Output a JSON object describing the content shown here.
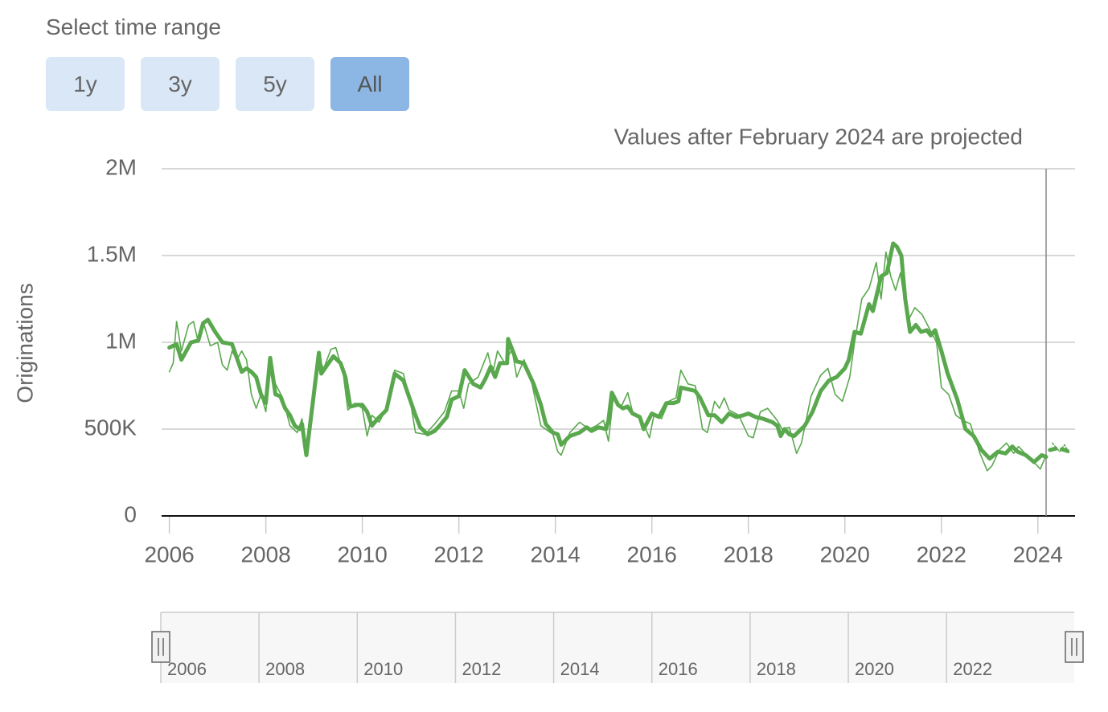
{
  "controls": {
    "label": "Select time range",
    "buttons": [
      "1y",
      "3y",
      "5y",
      "All"
    ],
    "selected": 3
  },
  "chart_data": {
    "type": "line",
    "annotation": "Values after February 2024 are projected",
    "ylabel": "Originations",
    "xlim": [
      2005.84,
      2024.77
    ],
    "xticks": [
      2006,
      2008,
      2010,
      2012,
      2014,
      2016,
      2018,
      2020,
      2022,
      2024
    ],
    "ylim": [
      0,
      2000000
    ],
    "yticks": [
      0,
      {
        "value": 500000,
        "label": "500K"
      },
      {
        "value": 1000000,
        "label": "1M"
      },
      {
        "value": 1500000,
        "label": "1.5M"
      },
      {
        "value": 2000000,
        "label": "2M"
      }
    ],
    "grid": true,
    "plot_line": 2024.17,
    "series": [
      {
        "color": "#5aa84e",
        "line_width": 1.6,
        "dashed": false,
        "x": [
          2006.0,
          2006.08,
          2006.15,
          2006.25,
          2006.4,
          2006.5,
          2006.6,
          2006.7,
          2006.85,
          2007.0,
          2007.1,
          2007.2,
          2007.3,
          2007.4,
          2007.5,
          2007.6,
          2007.7,
          2007.8,
          2007.9,
          2008.0,
          2008.09,
          2008.2,
          2008.35,
          2008.5,
          2008.65,
          2008.75,
          2008.84,
          2009.0,
          2009.1,
          2009.2,
          2009.35,
          2009.45,
          2009.6,
          2009.7,
          2009.85,
          2010.0,
          2010.1,
          2010.2,
          2010.35,
          2010.5,
          2010.67,
          2010.85,
          2011.0,
          2011.1,
          2011.3,
          2011.5,
          2011.7,
          2011.85,
          2012.0,
          2012.1,
          2012.2,
          2012.4,
          2012.6,
          2012.7,
          2012.8,
          2012.95,
          2013.1,
          2013.2,
          2013.35,
          2013.5,
          2013.7,
          2013.85,
          2013.95,
          2014.05,
          2014.12,
          2014.3,
          2014.5,
          2014.7,
          2014.85,
          2015.0,
          2015.1,
          2015.2,
          2015.35,
          2015.5,
          2015.6,
          2015.8,
          2015.95,
          2016.05,
          2016.2,
          2016.35,
          2016.5,
          2016.6,
          2016.75,
          2016.9,
          2017.05,
          2017.15,
          2017.3,
          2017.4,
          2017.5,
          2017.6,
          2017.8,
          2018.0,
          2018.1,
          2018.25,
          2018.4,
          2018.6,
          2018.7,
          2018.85,
          2019.0,
          2019.1,
          2019.3,
          2019.5,
          2019.65,
          2019.8,
          2019.95,
          2020.1,
          2020.2,
          2020.35,
          2020.5,
          2020.65,
          2020.75,
          2020.85,
          2020.95,
          2021.05,
          2021.15,
          2021.3,
          2021.45,
          2021.6,
          2021.75,
          2021.9,
          2022.0,
          2022.15,
          2022.3,
          2022.45,
          2022.6,
          2022.8,
          2022.95,
          2023.05,
          2023.2,
          2023.35,
          2023.5,
          2023.6,
          2023.8,
          2023.95,
          2024.05,
          2024.17
        ],
        "values": [
          830000,
          880000,
          1120000,
          950000,
          1100000,
          1120000,
          1000000,
          1120000,
          980000,
          1000000,
          870000,
          840000,
          950000,
          900000,
          950000,
          900000,
          700000,
          620000,
          700000,
          600000,
          900000,
          760000,
          680000,
          520000,
          480000,
          560000,
          350000,
          780000,
          900000,
          850000,
          960000,
          970000,
          830000,
          610000,
          650000,
          620000,
          460000,
          580000,
          540000,
          620000,
          840000,
          820000,
          650000,
          480000,
          470000,
          530000,
          600000,
          720000,
          720000,
          620000,
          760000,
          800000,
          940000,
          820000,
          950000,
          880000,
          960000,
          800000,
          900000,
          780000,
          520000,
          490000,
          470000,
          370000,
          350000,
          480000,
          540000,
          500000,
          520000,
          550000,
          430000,
          680000,
          620000,
          710000,
          600000,
          550000,
          450000,
          590000,
          560000,
          660000,
          680000,
          840000,
          760000,
          750000,
          500000,
          480000,
          660000,
          620000,
          680000,
          610000,
          580000,
          460000,
          450000,
          600000,
          620000,
          550000,
          500000,
          510000,
          360000,
          420000,
          690000,
          810000,
          850000,
          700000,
          660000,
          800000,
          1000000,
          1250000,
          1310000,
          1460000,
          1250000,
          1520000,
          1380000,
          1300000,
          1400000,
          1120000,
          1200000,
          1160000,
          1080000,
          1000000,
          740000,
          700000,
          580000,
          550000,
          530000,
          360000,
          260000,
          290000,
          380000,
          420000,
          360000,
          400000,
          340000,
          300000,
          270000,
          350000
        ]
      },
      {
        "color": "#5aa84e",
        "line_width": 5,
        "dashed": false,
        "x": [
          2006.0,
          2006.15,
          2006.25,
          2006.45,
          2006.6,
          2006.7,
          2006.8,
          2006.95,
          2007.1,
          2007.3,
          2007.5,
          2007.6,
          2007.7,
          2007.8,
          2007.9,
          2008.0,
          2008.09,
          2008.2,
          2008.3,
          2008.4,
          2008.5,
          2008.6,
          2008.7,
          2008.75,
          2008.84,
          2009.1,
          2009.15,
          2009.3,
          2009.4,
          2009.55,
          2009.65,
          2009.75,
          2009.9,
          2010.0,
          2010.1,
          2010.2,
          2010.32,
          2010.5,
          2010.67,
          2010.85,
          2010.95,
          2011.1,
          2011.2,
          2011.35,
          2011.5,
          2011.6,
          2011.75,
          2011.85,
          2012.0,
          2012.12,
          2012.3,
          2012.45,
          2012.55,
          2012.66,
          2012.75,
          2012.85,
          2013.0,
          2013.02,
          2013.2,
          2013.35,
          2013.45,
          2013.55,
          2013.7,
          2013.8,
          2013.95,
          2014.05,
          2014.12,
          2014.3,
          2014.5,
          2014.65,
          2014.75,
          2014.9,
          2015.05,
          2015.1,
          2015.17,
          2015.3,
          2015.4,
          2015.5,
          2015.6,
          2015.75,
          2015.83,
          2016.0,
          2016.15,
          2016.3,
          2016.45,
          2016.55,
          2016.6,
          2016.75,
          2016.9,
          2017.0,
          2017.17,
          2017.3,
          2017.45,
          2017.6,
          2017.75,
          2017.9,
          2018.0,
          2018.15,
          2018.3,
          2018.5,
          2018.6,
          2018.67,
          2018.75,
          2018.85,
          2018.95,
          2019.17,
          2019.33,
          2019.5,
          2019.67,
          2019.83,
          2020.0,
          2020.08,
          2020.2,
          2020.33,
          2020.5,
          2020.58,
          2020.75,
          2020.87,
          2021.0,
          2021.08,
          2021.17,
          2021.25,
          2021.35,
          2021.47,
          2021.58,
          2021.7,
          2021.78,
          2021.87,
          2022.0,
          2022.13,
          2022.33,
          2022.5,
          2022.67,
          2022.83,
          2023.0,
          2023.17,
          2023.33,
          2023.47,
          2023.58,
          2023.75,
          2023.92,
          2024.08,
          2024.17
        ],
        "values": [
          970000,
          990000,
          900000,
          1000000,
          1010000,
          1110000,
          1130000,
          1060000,
          1000000,
          990000,
          830000,
          850000,
          830000,
          800000,
          700000,
          650000,
          910000,
          700000,
          690000,
          620000,
          580000,
          520000,
          500000,
          530000,
          350000,
          940000,
          820000,
          880000,
          920000,
          880000,
          800000,
          630000,
          640000,
          640000,
          600000,
          520000,
          560000,
          610000,
          820000,
          780000,
          700000,
          580000,
          510000,
          470000,
          490000,
          520000,
          570000,
          670000,
          690000,
          840000,
          760000,
          740000,
          790000,
          860000,
          800000,
          880000,
          880000,
          1020000,
          890000,
          880000,
          820000,
          760000,
          640000,
          530000,
          480000,
          470000,
          410000,
          460000,
          480000,
          510000,
          490000,
          510000,
          500000,
          550000,
          710000,
          640000,
          620000,
          630000,
          590000,
          570000,
          500000,
          590000,
          570000,
          650000,
          650000,
          660000,
          740000,
          730000,
          720000,
          680000,
          580000,
          580000,
          540000,
          590000,
          570000,
          580000,
          590000,
          570000,
          560000,
          540000,
          520000,
          460000,
          500000,
          470000,
          460000,
          520000,
          600000,
          720000,
          780000,
          800000,
          850000,
          900000,
          1060000,
          1050000,
          1220000,
          1180000,
          1380000,
          1400000,
          1570000,
          1550000,
          1500000,
          1250000,
          1060000,
          1100000,
          1060000,
          1070000,
          1040000,
          1070000,
          950000,
          820000,
          670000,
          500000,
          460000,
          380000,
          330000,
          370000,
          360000,
          400000,
          370000,
          350000,
          310000,
          350000,
          340000
        ]
      },
      {
        "color": "#5aa84e",
        "line_width": 1.6,
        "dashed": true,
        "x": [
          2024.3,
          2024.45,
          2024.55,
          2024.65
        ],
        "values": [
          420000,
          370000,
          410000,
          360000
        ]
      },
      {
        "color": "#5aa84e",
        "line_width": 5,
        "dashed": true,
        "x": [
          2024.25,
          2024.4,
          2024.55,
          2024.65
        ],
        "values": [
          380000,
          390000,
          380000,
          370000
        ]
      }
    ]
  },
  "navigator": {
    "xlim": [
      2006,
      2024.6
    ],
    "xticks": [
      2006,
      2008,
      2010,
      2012,
      2014,
      2016,
      2018,
      2020,
      2022
    ]
  }
}
